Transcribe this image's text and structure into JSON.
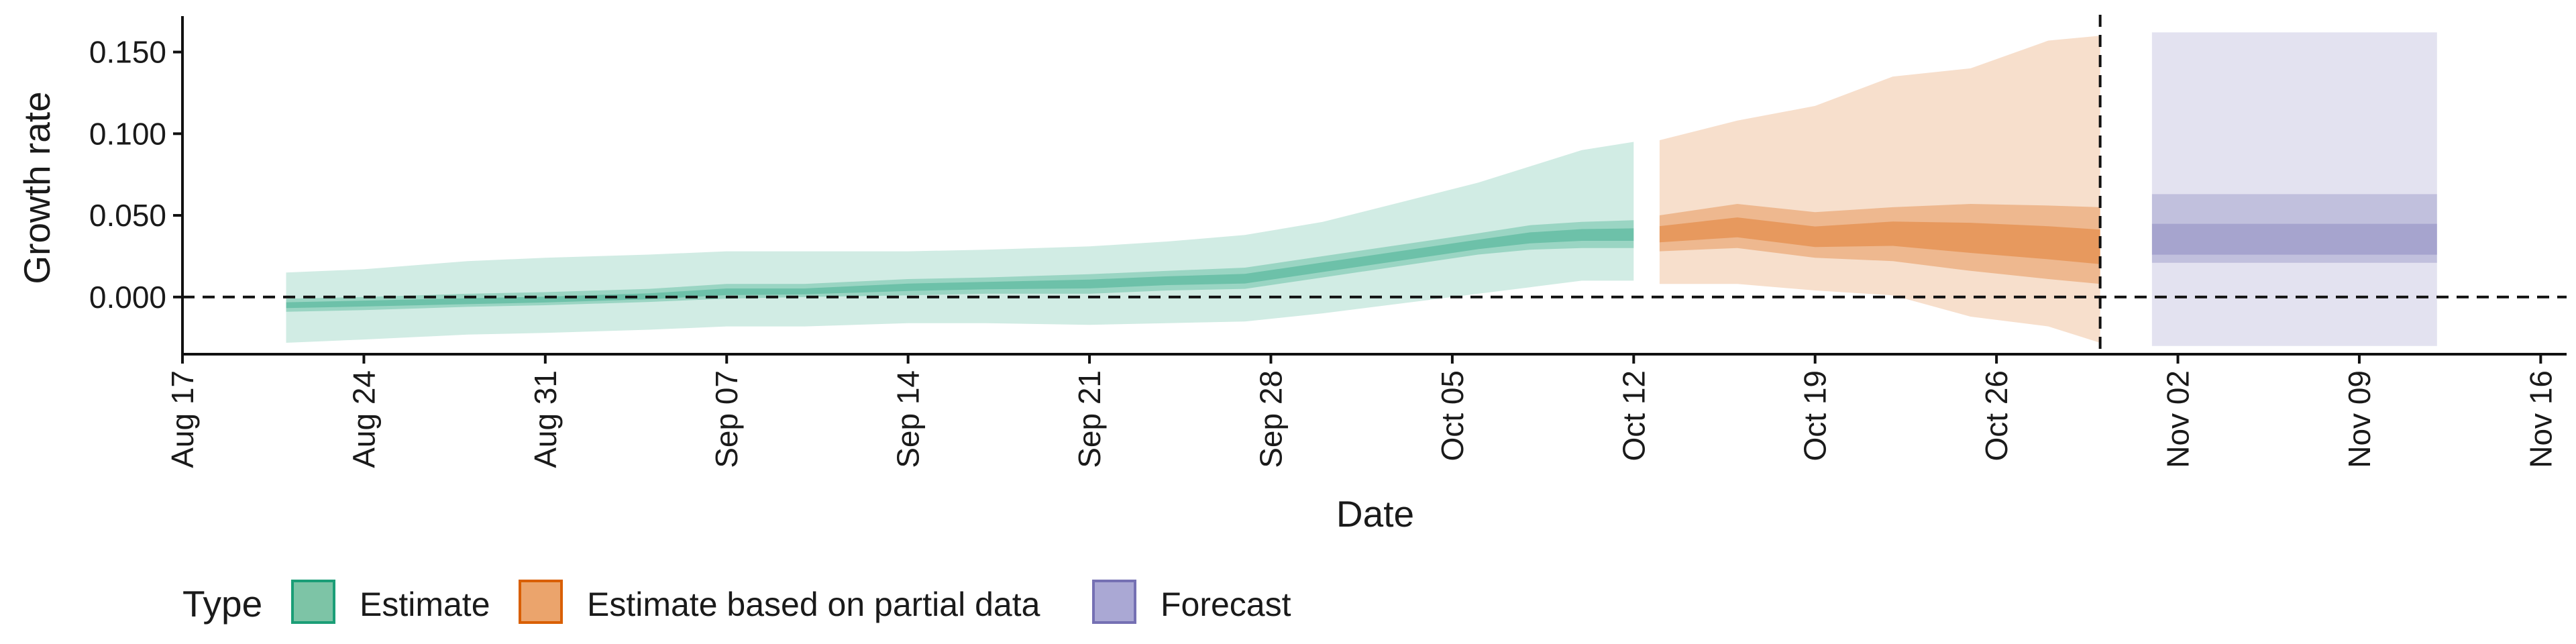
{
  "chart_data": {
    "type": "area",
    "xlabel": "Date",
    "ylabel": "Growth rate",
    "x_range": [
      "2020-08-17",
      "2020-11-17"
    ],
    "ylim": [
      -0.035,
      0.172
    ],
    "x_ticks": [
      {
        "date": "2020-08-17",
        "label": "Aug 17"
      },
      {
        "date": "2020-08-24",
        "label": "Aug 24"
      },
      {
        "date": "2020-08-31",
        "label": "Aug 31"
      },
      {
        "date": "2020-09-07",
        "label": "Sep 07"
      },
      {
        "date": "2020-09-14",
        "label": "Sep 14"
      },
      {
        "date": "2020-09-21",
        "label": "Sep 21"
      },
      {
        "date": "2020-09-28",
        "label": "Sep 28"
      },
      {
        "date": "2020-10-05",
        "label": "Oct 05"
      },
      {
        "date": "2020-10-12",
        "label": "Oct 12"
      },
      {
        "date": "2020-10-19",
        "label": "Oct 19"
      },
      {
        "date": "2020-10-26",
        "label": "Oct 26"
      },
      {
        "date": "2020-11-02",
        "label": "Nov 02"
      },
      {
        "date": "2020-11-09",
        "label": "Nov 09"
      },
      {
        "date": "2020-11-16",
        "label": "Nov 16"
      }
    ],
    "y_ticks": [
      {
        "value": 0.0,
        "label": "0.000"
      },
      {
        "value": 0.05,
        "label": "0.050"
      },
      {
        "value": 0.1,
        "label": "0.100"
      },
      {
        "value": 0.15,
        "label": "0.150"
      }
    ],
    "reference_lines": {
      "horizontal_y": 0.0,
      "vertical_date": "2020-10-30"
    },
    "grid": false,
    "legend": {
      "title": "Type",
      "position": "bottom",
      "items": [
        {
          "label": "Estimate",
          "fill": "#7dc4a6",
          "stroke": "#1b9e77"
        },
        {
          "label": "Estimate based on partial data",
          "fill": "#eba46c",
          "stroke": "#d95f02"
        },
        {
          "label": "Forecast",
          "fill": "#aaa8d4",
          "stroke": "#7570b3"
        }
      ]
    },
    "series": [
      {
        "name": "Estimate",
        "color": "#1b9e77",
        "points": [
          {
            "date": "2020-08-21",
            "lo90": -0.028,
            "lo50": -0.009,
            "median": -0.005,
            "hi50": -0.001,
            "hi90": 0.015
          },
          {
            "date": "2020-08-24",
            "lo90": -0.026,
            "lo50": -0.008,
            "median": -0.004,
            "hi50": 0.0,
            "hi90": 0.017
          },
          {
            "date": "2020-08-28",
            "lo90": -0.023,
            "lo50": -0.006,
            "median": -0.003,
            "hi50": 0.002,
            "hi90": 0.022
          },
          {
            "date": "2020-08-31",
            "lo90": -0.022,
            "lo50": -0.005,
            "median": -0.002,
            "hi50": 0.003,
            "hi90": 0.024
          },
          {
            "date": "2020-09-04",
            "lo90": -0.02,
            "lo50": -0.003,
            "median": 0.0,
            "hi50": 0.005,
            "hi90": 0.026
          },
          {
            "date": "2020-09-07",
            "lo90": -0.018,
            "lo50": -0.001,
            "median": 0.003,
            "hi50": 0.008,
            "hi90": 0.028
          },
          {
            "date": "2020-09-10",
            "lo90": -0.018,
            "lo50": 0.0,
            "median": 0.003,
            "hi50": 0.008,
            "hi90": 0.028
          },
          {
            "date": "2020-09-14",
            "lo90": -0.016,
            "lo50": 0.001,
            "median": 0.006,
            "hi50": 0.011,
            "hi90": 0.028
          },
          {
            "date": "2020-09-17",
            "lo90": -0.016,
            "lo50": 0.002,
            "median": 0.007,
            "hi50": 0.012,
            "hi90": 0.029
          },
          {
            "date": "2020-09-21",
            "lo90": -0.017,
            "lo50": 0.002,
            "median": 0.008,
            "hi50": 0.014,
            "hi90": 0.031
          },
          {
            "date": "2020-09-24",
            "lo90": -0.016,
            "lo50": 0.004,
            "median": 0.01,
            "hi50": 0.016,
            "hi90": 0.034
          },
          {
            "date": "2020-09-27",
            "lo90": -0.015,
            "lo50": 0.005,
            "median": 0.011,
            "hi50": 0.018,
            "hi90": 0.038
          },
          {
            "date": "2020-09-30",
            "lo90": -0.01,
            "lo50": 0.012,
            "median": 0.018,
            "hi50": 0.025,
            "hi90": 0.046
          },
          {
            "date": "2020-10-03",
            "lo90": -0.004,
            "lo50": 0.019,
            "median": 0.025,
            "hi50": 0.032,
            "hi90": 0.058
          },
          {
            "date": "2020-10-06",
            "lo90": 0.002,
            "lo50": 0.026,
            "median": 0.032,
            "hi50": 0.039,
            "hi90": 0.07
          },
          {
            "date": "2020-10-08",
            "lo90": 0.006,
            "lo50": 0.029,
            "median": 0.036,
            "hi50": 0.044,
            "hi90": 0.08
          },
          {
            "date": "2020-10-10",
            "lo90": 0.01,
            "lo50": 0.03,
            "median": 0.038,
            "hi50": 0.046,
            "hi90": 0.09
          },
          {
            "date": "2020-10-12",
            "lo90": 0.01,
            "lo50": 0.03,
            "median": 0.038,
            "hi50": 0.047,
            "hi90": 0.095
          }
        ]
      },
      {
        "name": "Estimate based on partial data",
        "color": "#d95f02",
        "points": [
          {
            "date": "2020-10-13",
            "lo90": 0.008,
            "lo50": 0.028,
            "median": 0.038,
            "hi50": 0.05,
            "hi90": 0.096
          },
          {
            "date": "2020-10-16",
            "lo90": 0.008,
            "lo50": 0.03,
            "median": 0.042,
            "hi50": 0.057,
            "hi90": 0.108
          },
          {
            "date": "2020-10-19",
            "lo90": 0.004,
            "lo50": 0.024,
            "median": 0.036,
            "hi50": 0.052,
            "hi90": 0.117
          },
          {
            "date": "2020-10-22",
            "lo90": 0.001,
            "lo50": 0.022,
            "median": 0.039,
            "hi50": 0.055,
            "hi90": 0.135
          },
          {
            "date": "2020-10-25",
            "lo90": -0.012,
            "lo50": 0.016,
            "median": 0.036,
            "hi50": 0.057,
            "hi90": 0.14
          },
          {
            "date": "2020-10-28",
            "lo90": -0.018,
            "lo50": 0.011,
            "median": 0.033,
            "hi50": 0.056,
            "hi90": 0.157
          },
          {
            "date": "2020-10-30",
            "lo90": -0.028,
            "lo50": 0.008,
            "median": 0.03,
            "hi50": 0.055,
            "hi90": 0.16
          }
        ]
      },
      {
        "name": "Forecast",
        "color": "#7570b3",
        "points": [
          {
            "date": "2020-11-01",
            "lo90": -0.03,
            "lo50": 0.021,
            "median": 0.03,
            "hi50": 0.063,
            "hi90": 0.162
          },
          {
            "date": "2020-11-12",
            "lo90": -0.03,
            "lo50": 0.021,
            "median": 0.03,
            "hi50": 0.063,
            "hi90": 0.162
          }
        ]
      }
    ]
  }
}
